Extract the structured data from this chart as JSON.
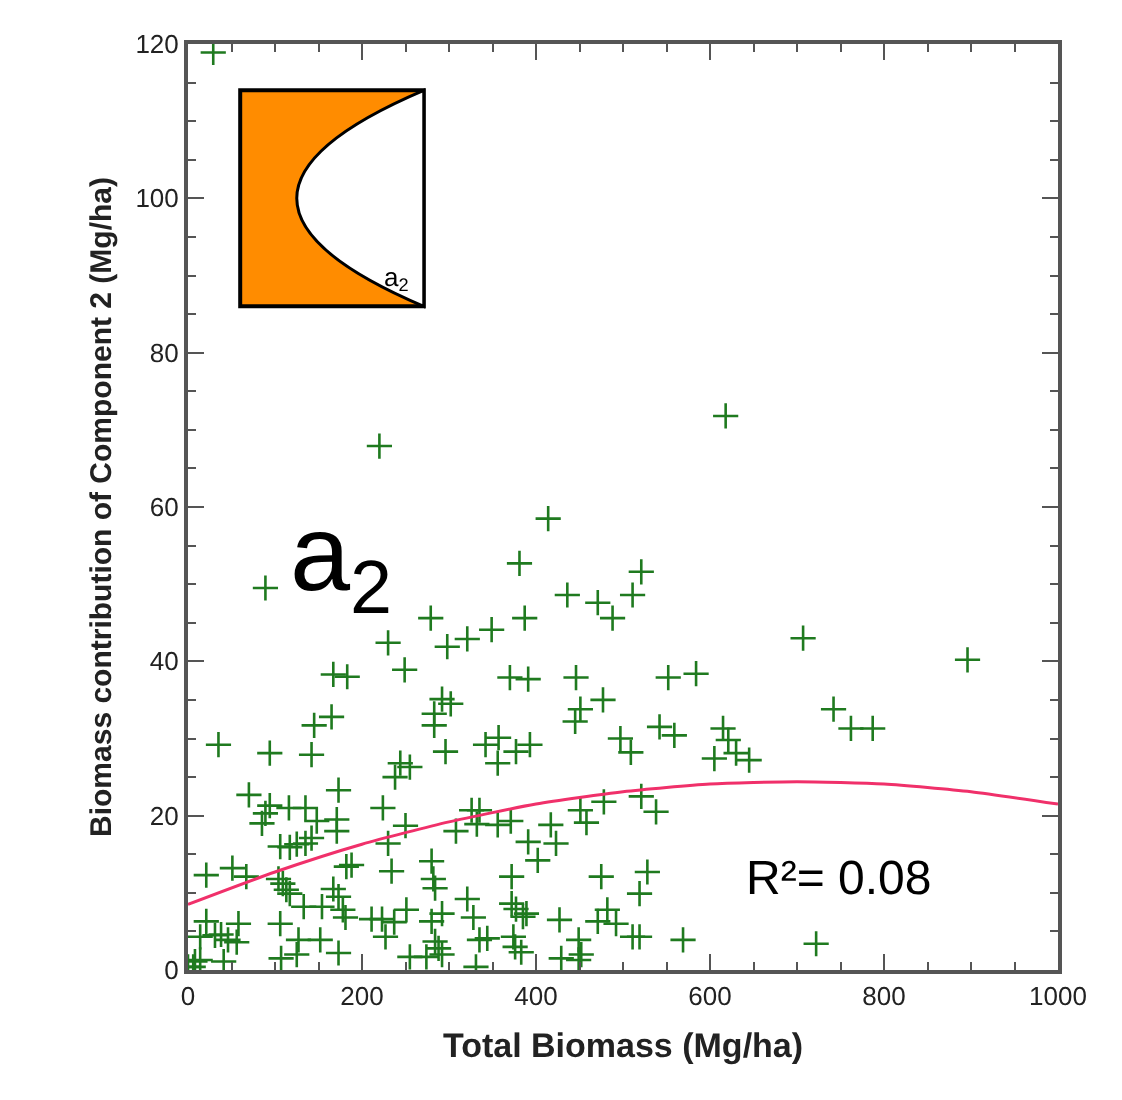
{
  "chart_data": {
    "type": "scatter",
    "xlabel": "Total Biomass (Mg/ha)",
    "ylabel": "Biomass contribution of Component 2 (Mg/ha)",
    "annotations": [
      "a$_{2}$",
      "a$_{2}$",
      "R²= 0.08"
    ],
    "series": [
      {
        "color": "#1f7a1f",
        "marker": "cross",
        "x": [
          414,
          381,
          89,
          436,
          471,
          488,
          279,
          387,
          230,
          298,
          321,
          349,
          167,
          183,
          249,
          370,
          391,
          446,
          292,
          302,
          283,
          283,
          477,
          451,
          445,
          165,
          145,
          35,
          94,
          142,
          296,
          342,
          357,
          393,
          377,
          356,
          497,
          509,
          244,
          255,
          238,
          173,
          70,
          94,
          89,
          85,
          116,
          135,
          148,
          171,
          171,
          224,
          250,
          230,
          326,
          335,
          356,
          371,
          417,
          458,
          451,
          478,
          308,
          332,
          391,
          423,
          402,
          106,
          117,
          125,
          135,
          142,
          67,
          21,
          51,
          104,
          113,
          117,
          188,
          182,
          234,
          280,
          282,
          372,
          475,
          109,
          133,
          154,
          167,
          173,
          178,
          284,
          321,
          372,
          377,
          389,
          385,
          251,
          292,
          328,
          482,
          21,
          58,
          106,
          181,
          211,
          223,
          237,
          280,
          427,
          471,
          492,
          14,
          31,
          38,
          46,
          56,
          127,
          152,
          227,
          284,
          288,
          335,
          344,
          374,
          376,
          449,
          511,
          125,
          173,
          107,
          255,
          274,
          292,
          383,
          429,
          449,
          452,
          8,
          14,
          41,
          0,
          6,
          331,
          521,
          511,
          707,
          896,
          552,
          584,
          742,
          762,
          787,
          542,
          559,
          615,
          621,
          630,
          645,
          605,
          521,
          538,
          528,
          519,
          519,
          569,
          722,
          29,
          220,
          618
        ],
        "values": [
          58.5,
          52.7,
          49.5,
          48.6,
          47.6,
          45.6,
          45.6,
          45.6,
          42.4,
          41.9,
          42.9,
          44.1,
          38.3,
          38.0,
          38.9,
          37.9,
          37.7,
          37.9,
          35.1,
          34.5,
          33.2,
          31.7,
          35.0,
          33.8,
          32.2,
          32.8,
          31.7,
          29.2,
          28.1,
          27.9,
          28.3,
          29.2,
          30.1,
          29.2,
          28.3,
          26.8,
          30.0,
          28.2,
          26.8,
          26.3,
          25.0,
          23.3,
          22.7,
          21.3,
          20.3,
          19.0,
          21.0,
          21.0,
          19.3,
          19.5,
          18.0,
          21.0,
          18.7,
          16.4,
          20.7,
          20.7,
          18.8,
          19.3,
          18.8,
          19.1,
          20.7,
          21.8,
          18.0,
          18.9,
          16.6,
          16.4,
          14.2,
          16.0,
          15.9,
          16.3,
          16.4,
          17.1,
          12.1,
          12.3,
          13.2,
          11.8,
          10.4,
          9.9,
          13.6,
          13.4,
          12.8,
          14.1,
          11.8,
          12.1,
          12.1,
          11.2,
          8.2,
          8.2,
          10.5,
          9.5,
          7.8,
          10.6,
          9.2,
          8.6,
          7.9,
          7.3,
          6.9,
          7.8,
          7.3,
          6.8,
          7.8,
          6.3,
          6.0,
          6.0,
          6.8,
          6.6,
          6.6,
          6.2,
          6.3,
          6.5,
          6.3,
          6.0,
          4.3,
          4.5,
          4.6,
          3.9,
          3.6,
          3.9,
          3.9,
          4.3,
          3.7,
          2.8,
          3.9,
          4.1,
          4.3,
          3.0,
          3.9,
          4.3,
          2.0,
          2.2,
          1.5,
          1.7,
          1.7,
          2.0,
          2.3,
          1.5,
          1.3,
          2.0,
          1.1,
          1.3,
          1.1,
          0.4,
          0.4,
          0.4,
          51.6,
          48.6,
          43.0,
          40.2,
          37.9,
          38.4,
          33.8,
          31.3,
          31.3,
          31.5,
          30.4,
          31.3,
          29.8,
          28.1,
          27.2,
          27.4,
          22.5,
          20.5,
          12.7,
          9.9,
          4.3,
          3.9,
          3.4,
          118.9,
          67.9,
          71.8
        ]
      },
      {
        "type": "line",
        "color": "#f0306a",
        "marker": "none",
        "line_style": "solid",
        "x": [
          0,
          100,
          200,
          300,
          400,
          500,
          600,
          700,
          800,
          900,
          1000
        ],
        "values": [
          8.5,
          12.7,
          16.3,
          19.2,
          21.5,
          23.1,
          24.1,
          24.4,
          24.1,
          23.1,
          21.5
        ]
      }
    ],
    "xlim": [
      0,
      1000
    ],
    "xticks": [
      0,
      200,
      400,
      600,
      800,
      1000
    ],
    "ylim": [
      0,
      120
    ],
    "yticks": [
      0,
      20,
      40,
      60,
      80,
      100,
      120
    ]
  }
}
